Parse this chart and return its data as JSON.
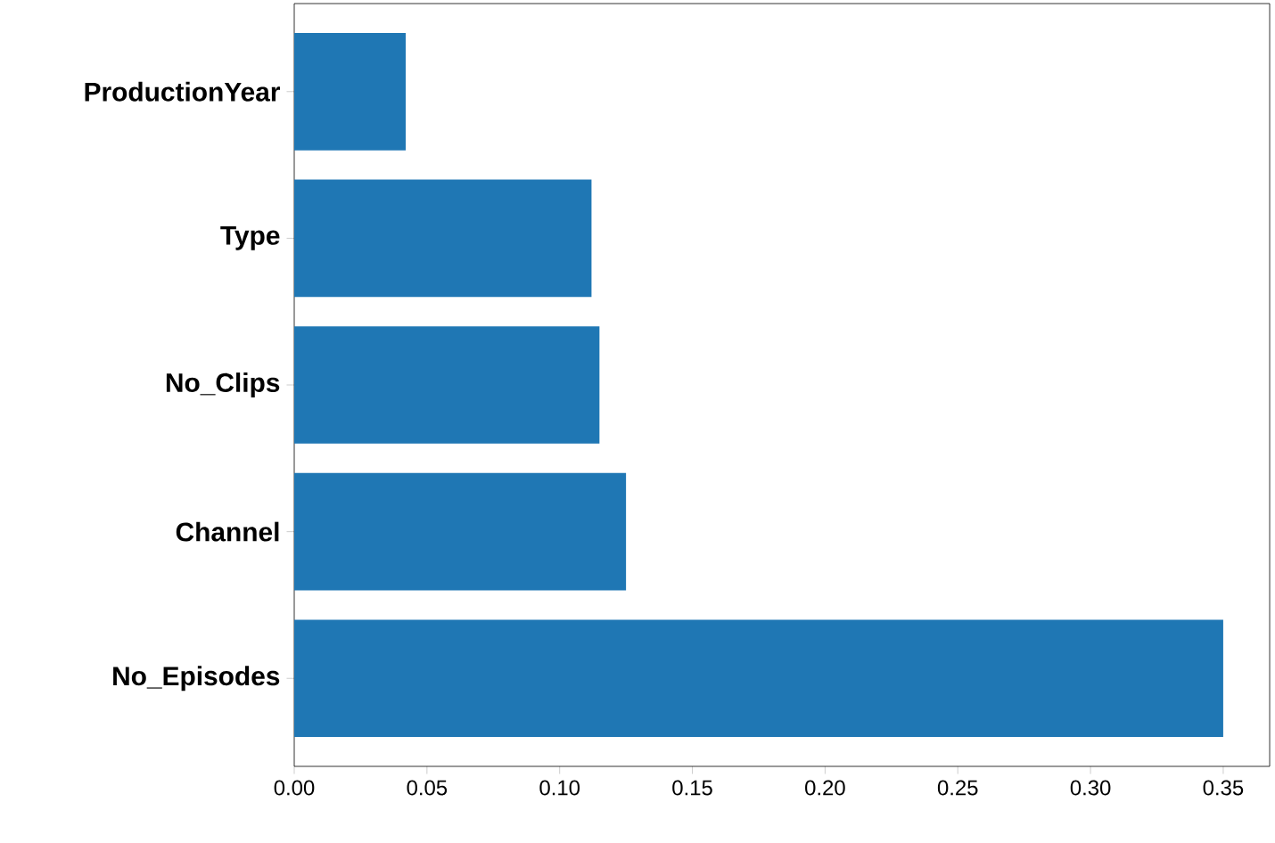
{
  "chart_data": {
    "type": "bar",
    "orientation": "horizontal",
    "categories": [
      "ProductionYear",
      "Type",
      "No_Clips",
      "Channel",
      "No_Episodes"
    ],
    "values": [
      0.042,
      0.112,
      0.115,
      0.125,
      0.35
    ],
    "color": "#1f77b4",
    "xlim": [
      0,
      0.3675
    ],
    "xticks": [
      {
        "value": 0,
        "label": "0.00"
      },
      {
        "value": 0.05,
        "label": "0.05"
      },
      {
        "value": 0.1,
        "label": "0.10"
      },
      {
        "value": 0.15,
        "label": "0.15"
      },
      {
        "value": 0.2,
        "label": "0.20"
      },
      {
        "value": 0.25,
        "label": "0.25"
      },
      {
        "value": 0.3,
        "label": "0.30"
      },
      {
        "value": 0.35,
        "label": "0.35"
      }
    ],
    "grid": false
  }
}
